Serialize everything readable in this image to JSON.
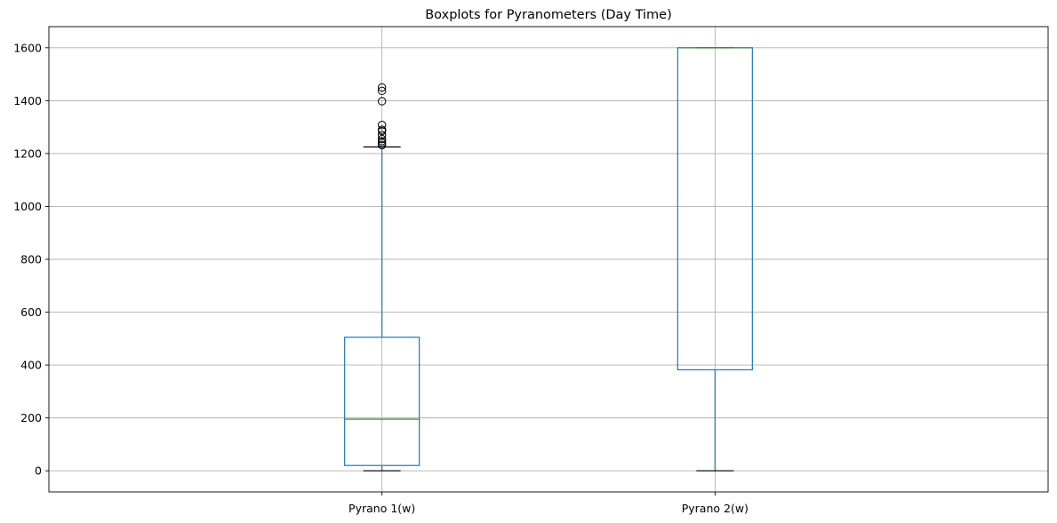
{
  "chart_data": {
    "type": "boxplot",
    "title": "Boxplots for Pyranometers (Day Time)",
    "xlabel": "",
    "ylabel": "",
    "ylim": [
      -80,
      1680
    ],
    "yticks": [
      0,
      200,
      400,
      600,
      800,
      1000,
      1200,
      1400,
      1600
    ],
    "grid": true,
    "categories": [
      "Pyrano 1(w)",
      "Pyrano 2(w)"
    ],
    "boxes": [
      {
        "name": "Pyrano 1(w)",
        "whisker_low": 0,
        "q1": 20,
        "median": 195,
        "q3": 505,
        "whisker_high": 1225,
        "outliers": [
          1232,
          1240,
          1247,
          1255,
          1270,
          1285,
          1290,
          1308,
          1398,
          1437,
          1450
        ]
      },
      {
        "name": "Pyrano 2(w)",
        "whisker_low": 0,
        "q1": 382,
        "median": 1600,
        "q3": 1600,
        "whisker_high": 1600,
        "outliers": []
      }
    ],
    "colors": {
      "box": "#1f77b4",
      "median": "#2ca02c",
      "whisker_cap": "#000000",
      "outlier": "#000000",
      "grid": "#b0b0b0"
    }
  }
}
